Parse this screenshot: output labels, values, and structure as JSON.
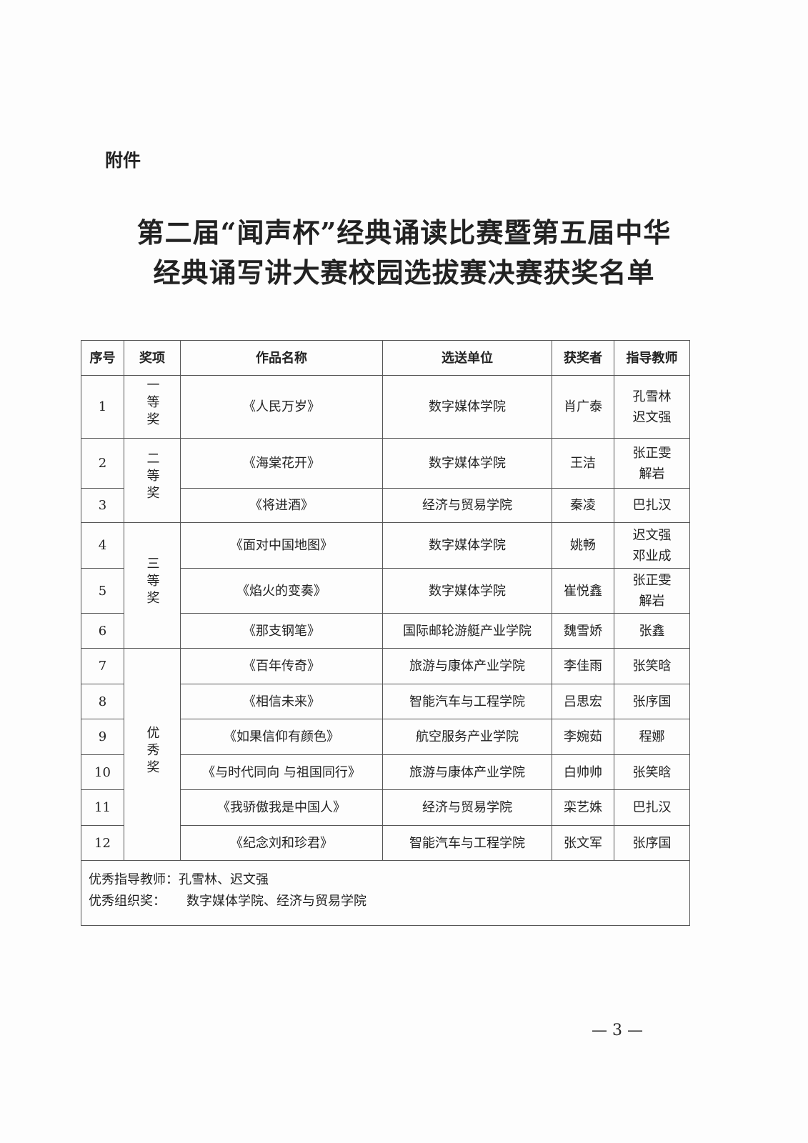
{
  "attachment_label": "附件",
  "title_line1": "第二届“闻声杯”经典诵读比赛暨第五届中华",
  "title_line2": "经典诵写讲大赛校园选拔赛决赛获奖名单",
  "table": {
    "headers": [
      "序号",
      "奖项",
      "作品名称",
      "选送单位",
      "获奖者",
      "指导教师"
    ],
    "awards": [
      "一等奖",
      "二等奖",
      "三等奖",
      "优秀奖"
    ],
    "rows": [
      {
        "no": "1",
        "work": "《人民万岁》",
        "unit": "数字媒体学院",
        "winner": "肖广泰",
        "teacher": "孔雪林\n迟文强"
      },
      {
        "no": "2",
        "work": "《海棠花开》",
        "unit": "数字媒体学院",
        "winner": "王洁",
        "teacher": "张正雯\n解岩"
      },
      {
        "no": "3",
        "work": "《将进酒》",
        "unit": "经济与贸易学院",
        "winner": "秦凌",
        "teacher": "巴扎汉"
      },
      {
        "no": "4",
        "work": "《面对中国地图》",
        "unit": "数字媒体学院",
        "winner": "姚畅",
        "teacher": "迟文强\n邓业成"
      },
      {
        "no": "5",
        "work": "《焰火的变奏》",
        "unit": "数字媒体学院",
        "winner": "崔悦鑫",
        "teacher": "张正雯\n解岩"
      },
      {
        "no": "6",
        "work": "《那支钢笔》",
        "unit": "国际邮轮游艇产业学院",
        "winner": "魏雪娇",
        "teacher": "张鑫"
      },
      {
        "no": "7",
        "work": "《百年传奇》",
        "unit": "旅游与康体产业学院",
        "winner": "李佳雨",
        "teacher": "张笑晗"
      },
      {
        "no": "8",
        "work": "《相信未来》",
        "unit": "智能汽车与工程学院",
        "winner": "吕思宏",
        "teacher": "张序国"
      },
      {
        "no": "9",
        "work": "《如果信仰有颜色》",
        "unit": "航空服务产业学院",
        "winner": "李婉茹",
        "teacher": "程娜"
      },
      {
        "no": "10",
        "work": "《与时代同向  与祖国同行》",
        "unit": "旅游与康体产业学院",
        "winner": "白帅帅",
        "teacher": "张笑晗"
      },
      {
        "no": "11",
        "work": "《我骄傲我是中国人》",
        "unit": "经济与贸易学院",
        "winner": "栾艺姝",
        "teacher": "巴扎汉"
      },
      {
        "no": "12",
        "work": "《纪念刘和珍君》",
        "unit": "智能汽车与工程学院",
        "winner": "张文军",
        "teacher": "张序国"
      }
    ],
    "footer": {
      "teacher_label": "优秀指导教师：",
      "teacher_value": "孔雪林、迟文强",
      "org_label": "优秀组织奖：",
      "org_value": "数字媒体学院、经济与贸易学院"
    }
  },
  "page_number": "— 3 —"
}
